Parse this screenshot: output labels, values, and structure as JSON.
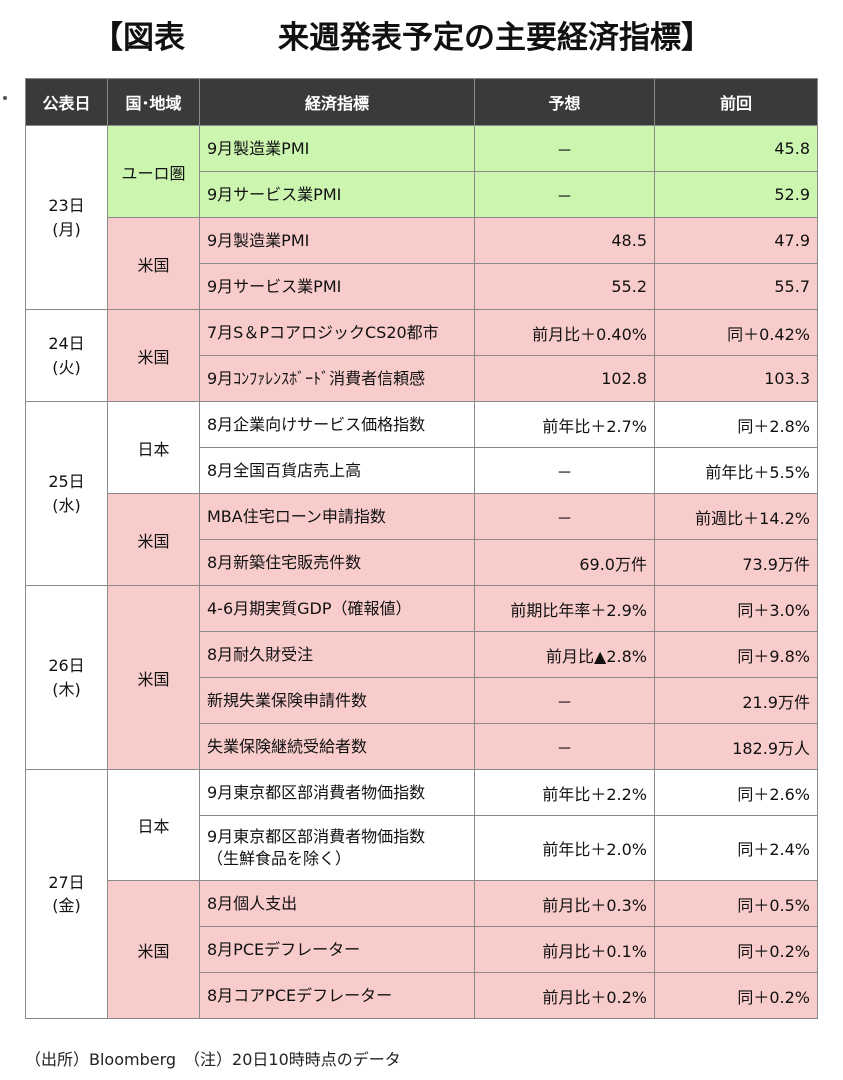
{
  "title": {
    "left": "【図表",
    "right": "来週発表予定の主要経済指標】"
  },
  "table": {
    "headers": [
      "公表日",
      "国･地域",
      "経済指標",
      "予想",
      "前回"
    ],
    "colors": {
      "header_bg": "#3a3a3a",
      "eurozone": "#ccf5b0",
      "us": "#f9cccc",
      "japan": "#ffffff"
    },
    "rows": [
      {
        "indicator": "9月製造業PMI",
        "forecast": "－",
        "previous": "45.8"
      },
      {
        "indicator": "9月サービス業PMI",
        "forecast": "－",
        "previous": "52.9"
      },
      {
        "indicator": "9月製造業PMI",
        "forecast": "48.5",
        "previous": "47.9"
      },
      {
        "indicator": "9月サービス業PMI",
        "forecast": "55.2",
        "previous": "55.7"
      },
      {
        "indicator": "7月S＆PコアロジックCS20都市",
        "forecast": "前月比＋0.40%",
        "previous": "同＋0.42%"
      },
      {
        "indicator": "9月ｺﾝﾌｧﾚﾝｽﾎﾞｰﾄﾞ消費者信頼感",
        "forecast": "102.8",
        "previous": "103.3"
      },
      {
        "indicator": "8月企業向けサービス価格指数",
        "forecast": "前年比＋2.7%",
        "previous": "同＋2.8%"
      },
      {
        "indicator": "8月全国百貨店売上高",
        "forecast": "－",
        "previous": "前年比＋5.5%"
      },
      {
        "indicator": "MBA住宅ローン申請指数",
        "forecast": "－",
        "previous": "前週比＋14.2%"
      },
      {
        "indicator": "8月新築住宅販売件数",
        "forecast": "69.0万件",
        "previous": "73.9万件"
      },
      {
        "indicator": "4-6月期実質GDP（確報値）",
        "forecast": "前期比年率＋2.9%",
        "previous": "同＋3.0%"
      },
      {
        "indicator": "8月耐久財受注",
        "forecast": "前月比▲2.8%",
        "previous": "同＋9.8%"
      },
      {
        "indicator": "新規失業保険申請件数",
        "forecast": "－",
        "previous": "21.9万件"
      },
      {
        "indicator": "失業保険継続受給者数",
        "forecast": "－",
        "previous": "182.9万人"
      },
      {
        "indicator": "9月東京都区部消費者物価指数",
        "forecast": "前年比＋2.2%",
        "previous": "同＋2.6%"
      },
      {
        "indicator": "9月東京都区部消費者物価指数",
        "indicator_line2": "（生鮮食品を除く）",
        "forecast": "前年比＋2.0%",
        "previous": "同＋2.4%"
      },
      {
        "indicator": "8月個人支出",
        "forecast": "前月比＋0.3%",
        "previous": "同＋0.5%"
      },
      {
        "indicator": "8月PCEデフレーター",
        "forecast": "前月比＋0.1%",
        "previous": "同＋0.2%"
      },
      {
        "indicator": "8月コアPCEデフレーター",
        "forecast": "前月比＋0.2%",
        "previous": "同＋0.2%"
      }
    ],
    "dates": [
      {
        "day": "23日",
        "weekday": "(月)"
      },
      {
        "day": "24日",
        "weekday": "(火)"
      },
      {
        "day": "25日",
        "weekday": "(水)"
      },
      {
        "day": "26日",
        "weekday": "(木)"
      },
      {
        "day": "27日",
        "weekday": "(金)"
      }
    ],
    "regions": {
      "eurozone": "ユーロ圏",
      "us": "米国",
      "japan": "日本"
    }
  },
  "footnote": "（出所）Bloomberg　（注）20日10時時点のデータ"
}
